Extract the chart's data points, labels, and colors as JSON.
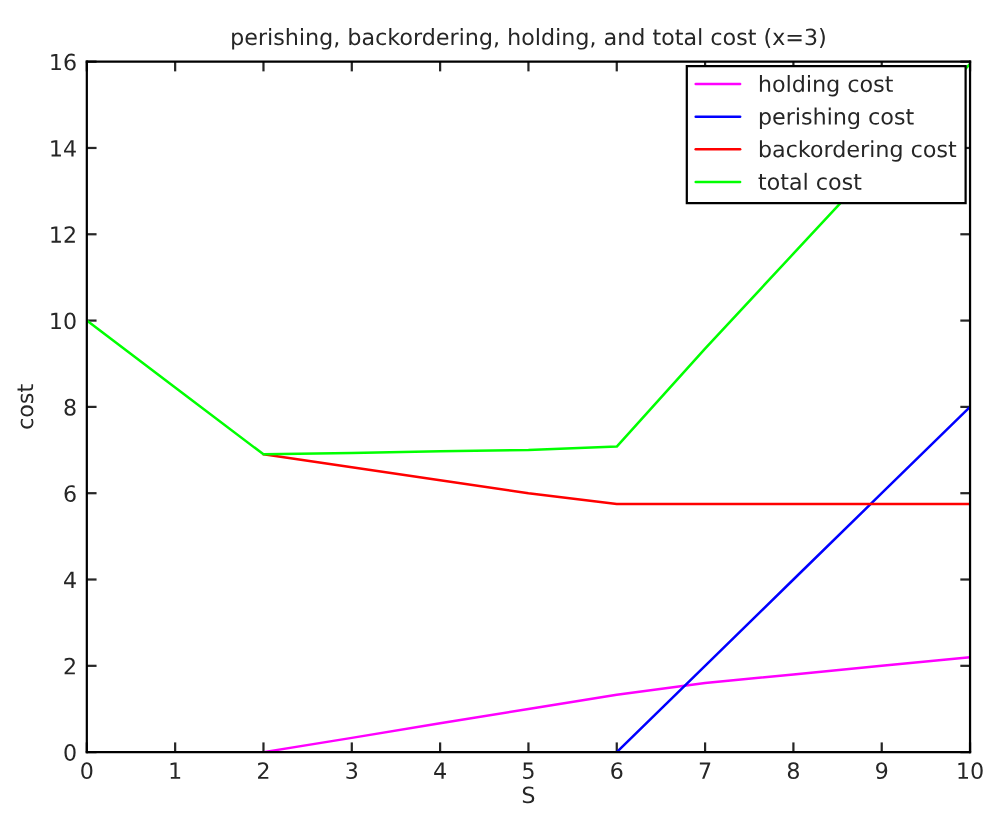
{
  "chart_data": {
    "type": "line",
    "title": "perishing, backordering, holding, and total cost (x=3)",
    "xlabel": "S",
    "ylabel": "cost",
    "x": [
      0,
      1,
      2,
      3,
      4,
      5,
      6,
      7,
      8,
      9,
      10
    ],
    "series": [
      {
        "name": "holding cost",
        "color": "#ff00ff",
        "values": [
          null,
          null,
          0,
          0.33,
          0.67,
          1.0,
          1.33,
          1.6,
          1.8,
          2.0,
          2.2
        ]
      },
      {
        "name": "perishing cost",
        "color": "#0000ff",
        "values": [
          null,
          null,
          null,
          null,
          null,
          null,
          0,
          2,
          4,
          6,
          8
        ]
      },
      {
        "name": "backordering cost",
        "color": "#ff0000",
        "values": [
          null,
          null,
          6.9,
          6.6,
          6.3,
          6.0,
          5.75,
          5.75,
          5.75,
          5.75,
          5.75
        ]
      },
      {
        "name": "total cost",
        "color": "#00ff00",
        "values": [
          10,
          8.45,
          6.9,
          6.93,
          6.97,
          7.0,
          7.08,
          9.35,
          11.55,
          null,
          15.95
        ]
      }
    ],
    "xlim": [
      0,
      10
    ],
    "xticks": [
      0,
      1,
      2,
      3,
      4,
      5,
      6,
      7,
      8,
      9,
      10
    ],
    "ylim": [
      0,
      16
    ],
    "yticks": [
      0,
      2,
      4,
      6,
      8,
      10,
      12,
      14,
      16
    ],
    "grid": false,
    "legend": "top right",
    "marker": "none",
    "line_style": "solid"
  }
}
